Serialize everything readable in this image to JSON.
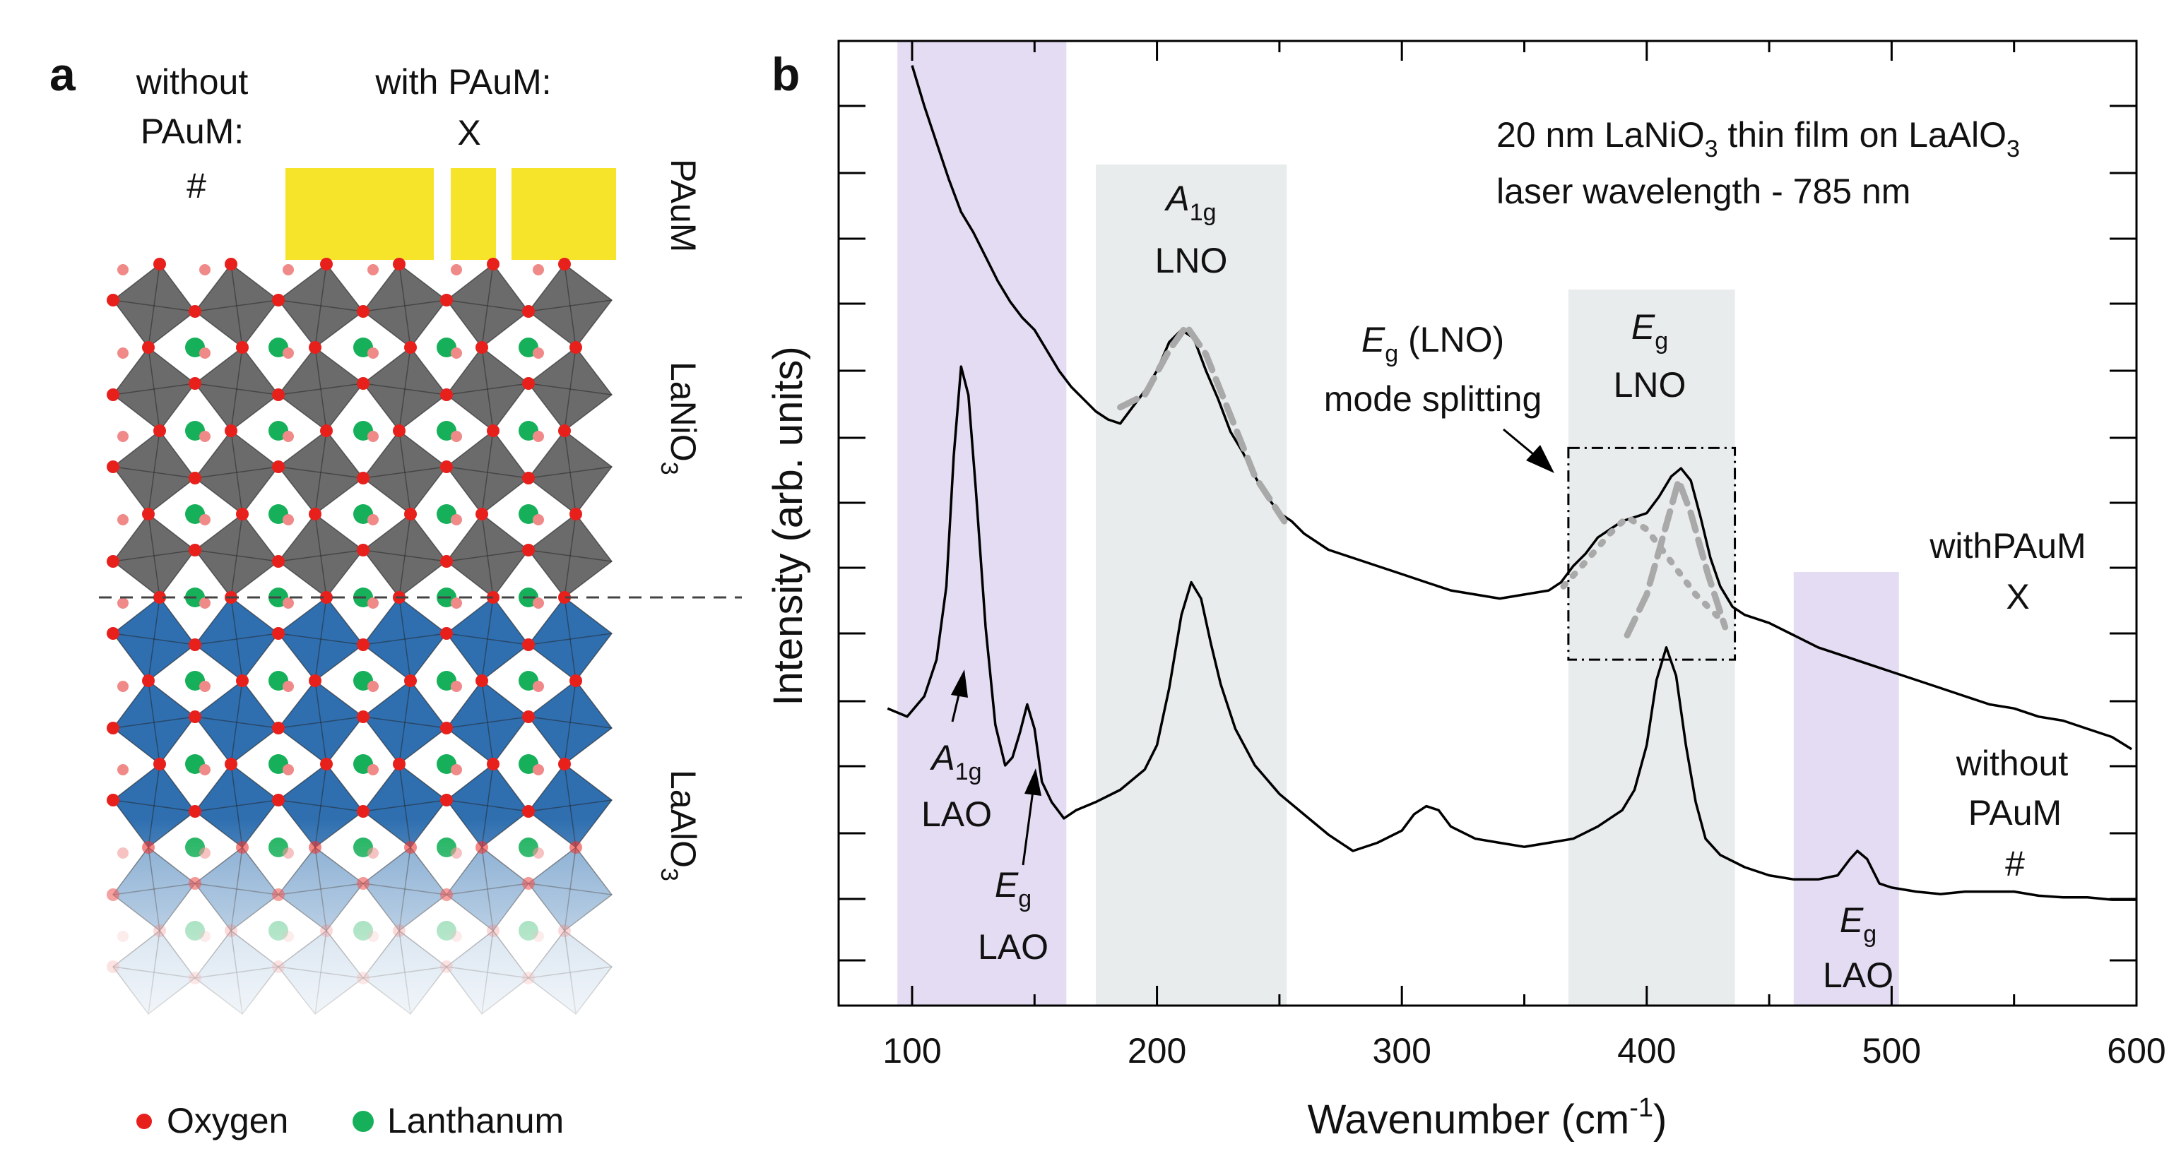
{
  "panel_a": {
    "label": "a",
    "without_line1": "without",
    "without_line2": "PAuM:",
    "without_symbol": "#",
    "with_label": "with PAuM:",
    "with_symbol": "X",
    "layer_pauM": "PAuM",
    "layer_lno": "LaNiO",
    "layer_lno_sub": "3",
    "layer_lao": "LaAlO",
    "layer_lao_sub": "3",
    "legend_oxygen": "Oxygen",
    "legend_lanthanum": "Lanthanum",
    "colors": {
      "gold": "#f5e42a",
      "lno_octahedra": "#6b6b6b",
      "lao_octahedra": "#2f6fb0",
      "oxygen": "#e8201c",
      "lanthanum": "#17b05a"
    }
  },
  "panel_b": {
    "label": "b",
    "info_line1_pre": "20 nm LaNiO",
    "info_line1_sub": "3",
    "info_line1_mid": " thin film on LaAlO",
    "info_line1_sub2": "3",
    "info_line2": "laser wavelength - 785 nm",
    "band_a1g_lno_main": "A",
    "band_a1g_lno_sub": "1g",
    "band_a1g_lno_name": "LNO",
    "band_eg_lno_main": "E",
    "band_eg_lno_sub": "g",
    "band_eg_lno_name": "LNO",
    "splitting_line1_main": "E",
    "splitting_line1_sub": "g",
    "splitting_line1_rest": " (LNO)",
    "splitting_line2": "mode splitting",
    "ann_a1g_lao_main": "A",
    "ann_a1g_lao_sub": "1g",
    "ann_a1g_lao_name": "LAO",
    "ann_eg_lao_main": "E",
    "ann_eg_lao_sub": "g",
    "ann_eg_lao_name": "LAO",
    "ann_eg_lao2_main": "E",
    "ann_eg_lao2_sub": "g",
    "ann_eg_lao2_name": "LAO",
    "label_with_line1": "withPAuM",
    "label_with_line2": "X",
    "label_without_line1": "without",
    "label_without_line2": "PAuM",
    "label_without_line3": "#",
    "colors": {
      "lao_band": "#e4dcf2",
      "lno_band": "#e9ecec",
      "fit": "#a9a9a9"
    }
  },
  "chart_data": {
    "type": "line",
    "title": "",
    "xlabel_main": "Wavenumber (cm",
    "xlabel_sup": "-1",
    "xlabel_end": ")",
    "ylabel": "Intensity (arb. units)",
    "xlim": [
      70,
      600
    ],
    "ylim": [
      0,
      10
    ],
    "xticks": [
      100,
      200,
      300,
      400,
      500,
      600
    ],
    "xtick_labels": [
      "100",
      "200",
      "300",
      "400",
      "500",
      "600"
    ],
    "y_tick_values": [
      0.25,
      1.25,
      2.25,
      3.25,
      4.25,
      5.25,
      6.25,
      7.25,
      8.25,
      9.25
    ],
    "shaded_bands": [
      {
        "name": "A1g LAO band",
        "from": 94,
        "to": 163,
        "color": "#e4dcf2"
      },
      {
        "name": "A1g LNO band",
        "from": 175,
        "to": 253,
        "color": "#e9ecec"
      },
      {
        "name": "Eg LNO band",
        "from": 368,
        "to": 436,
        "color": "#e9ecec"
      },
      {
        "name": "Eg LAO band",
        "from": 460,
        "to": 503,
        "color": "#e4dcf2"
      }
    ],
    "dashed_box": {
      "x": [
        368,
        436
      ],
      "y": [
        2.8,
        5.4
      ]
    },
    "series": [
      {
        "name": "with PAuM (X)",
        "x": [
          100,
          105,
          110,
          115,
          120,
          125,
          130,
          135,
          140,
          145,
          150,
          155,
          160,
          165,
          170,
          175,
          180,
          185,
          190,
          195,
          200,
          205,
          210,
          215,
          220,
          225,
          230,
          235,
          240,
          245,
          250,
          255,
          260,
          270,
          280,
          290,
          300,
          310,
          320,
          330,
          340,
          350,
          360,
          365,
          370,
          375,
          380,
          385,
          390,
          395,
          400,
          405,
          410,
          414,
          418,
          422,
          426,
          430,
          435,
          440,
          450,
          460,
          470,
          480,
          490,
          500,
          510,
          520,
          530,
          540,
          550,
          560,
          570,
          580,
          590,
          598
        ],
        "values": [
          10.1,
          9.6,
          9.15,
          8.7,
          8.3,
          8.05,
          7.75,
          7.45,
          7.2,
          7.0,
          6.85,
          6.6,
          6.35,
          6.15,
          6.0,
          5.85,
          5.75,
          5.7,
          5.9,
          6.1,
          6.35,
          6.7,
          6.85,
          6.75,
          6.35,
          6.0,
          5.6,
          5.35,
          5.05,
          4.8,
          4.6,
          4.5,
          4.35,
          4.15,
          4.05,
          3.95,
          3.85,
          3.75,
          3.65,
          3.6,
          3.55,
          3.6,
          3.65,
          3.75,
          3.95,
          4.1,
          4.3,
          4.4,
          4.5,
          4.55,
          4.6,
          4.8,
          5.05,
          5.15,
          5.0,
          4.55,
          4.05,
          3.7,
          3.45,
          3.35,
          3.25,
          3.1,
          2.95,
          2.85,
          2.75,
          2.65,
          2.55,
          2.45,
          2.35,
          2.25,
          2.2,
          2.1,
          2.05,
          1.95,
          1.85,
          1.7
        ]
      },
      {
        "name": "without PAuM (#)",
        "x": [
          90,
          98,
          105,
          110,
          114,
          117,
          120,
          123,
          126,
          130,
          134,
          138,
          141,
          144,
          147,
          150,
          153,
          157,
          162,
          167,
          175,
          185,
          195,
          200,
          205,
          210,
          214,
          218,
          222,
          226,
          232,
          240,
          250,
          260,
          270,
          280,
          290,
          300,
          305,
          310,
          315,
          320,
          330,
          340,
          350,
          360,
          370,
          380,
          390,
          395,
          400,
          404,
          408,
          412,
          416,
          420,
          424,
          430,
          440,
          450,
          460,
          470,
          478,
          483,
          486,
          490,
          495,
          500,
          510,
          520,
          530,
          540,
          550,
          560,
          570,
          580,
          590,
          600
        ],
        "values": [
          2.2,
          2.1,
          2.35,
          2.8,
          3.7,
          5.3,
          6.4,
          6.05,
          4.9,
          3.2,
          2.0,
          1.5,
          1.6,
          1.9,
          2.25,
          1.95,
          1.3,
          1.05,
          0.85,
          0.95,
          1.05,
          1.2,
          1.45,
          1.75,
          2.45,
          3.35,
          3.75,
          3.55,
          3.0,
          2.5,
          1.95,
          1.5,
          1.15,
          0.9,
          0.65,
          0.45,
          0.55,
          0.7,
          0.9,
          1.0,
          0.95,
          0.75,
          0.6,
          0.55,
          0.5,
          0.55,
          0.6,
          0.75,
          0.95,
          1.2,
          1.75,
          2.55,
          2.95,
          2.6,
          1.75,
          1.05,
          0.6,
          0.4,
          0.25,
          0.15,
          0.1,
          0.1,
          0.15,
          0.35,
          0.45,
          0.35,
          0.05,
          0.0,
          -0.05,
          -0.08,
          -0.05,
          -0.05,
          -0.05,
          -0.1,
          -0.12,
          -0.12,
          -0.15,
          -0.15
        ]
      },
      {
        "name": "A1g LNO fit (dashed)",
        "x": [
          185,
          195,
          205,
          212,
          220,
          230,
          240,
          252
        ],
        "values": [
          5.9,
          6.05,
          6.6,
          6.9,
          6.55,
          5.8,
          5.05,
          4.5
        ]
      },
      {
        "name": "Eg LNO fit component 1 (dotted)",
        "x": [
          366,
          375,
          385,
          392,
          400,
          410,
          420,
          430
        ],
        "values": [
          3.7,
          4.0,
          4.35,
          4.55,
          4.4,
          4.0,
          3.6,
          3.3
        ]
      },
      {
        "name": "Eg LNO fit component 2 (dashed)",
        "x": [
          392,
          400,
          407,
          413,
          418,
          425,
          432
        ],
        "values": [
          3.1,
          3.6,
          4.35,
          5.0,
          4.6,
          3.85,
          3.2
        ]
      }
    ]
  }
}
